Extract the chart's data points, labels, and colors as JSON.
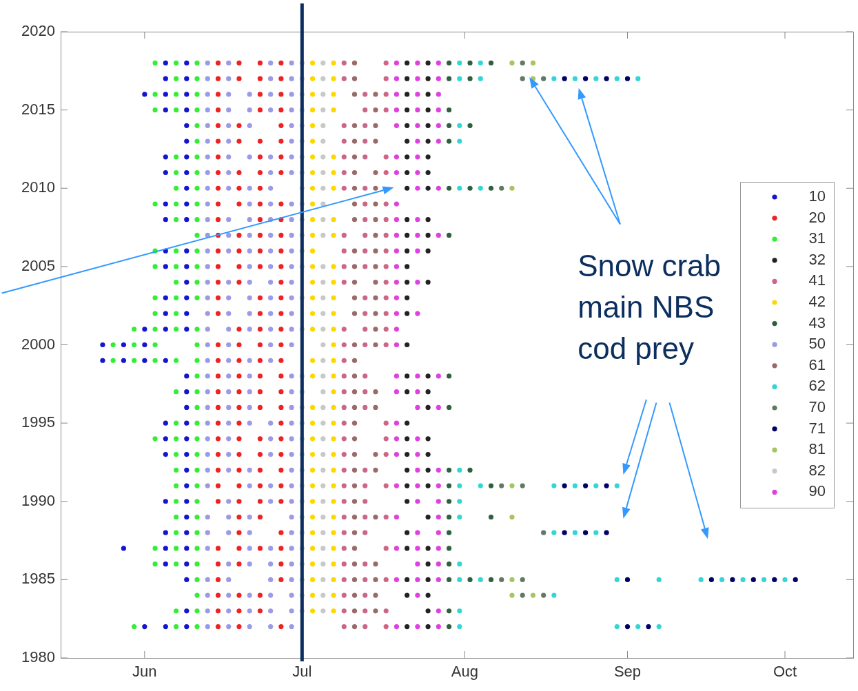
{
  "chart_data": {
    "type": "scatter",
    "marker": "circle",
    "grid": false,
    "legend": "right",
    "xlim": [
      "--05-16",
      "--10-14"
    ],
    "xticks": [
      {
        "value": "--06-01",
        "label": "Jun"
      },
      {
        "value": "--07-01",
        "label": "Jul"
      },
      {
        "value": "--08-01",
        "label": "Aug"
      },
      {
        "value": "--09-01",
        "label": "Sep"
      },
      {
        "value": "--10-01",
        "label": "Oct"
      }
    ],
    "ylim": [
      1980,
      2020
    ],
    "yticks": [
      1980,
      1985,
      1990,
      1995,
      2000,
      2005,
      2010,
      2015,
      2020
    ],
    "ref_lines": [
      {
        "axis": "x",
        "value": "--07-01",
        "color": "#0d2f5f"
      }
    ],
    "annotations": [
      "Snow crab main NBS cod prey"
    ],
    "series": [
      {
        "name": "10",
        "color": "#1515d0",
        "x": [
          "--06-05",
          "--06-09",
          "--06-05",
          "--06-09",
          "--06-01",
          "--06-05",
          "--06-09",
          "--06-05",
          "--06-09",
          "--06-09",
          "--06-09",
          "--06-05",
          "--06-09",
          "--06-05",
          "--06-09",
          "--06-09",
          "--06-05",
          "--06-09",
          "--06-05",
          "--06-09",
          "--06-05",
          "--06-09",
          "--06-05",
          "--06-09",
          "--06-09",
          "--06-05",
          "--06-09",
          "--06-05",
          "--06-09",
          "--06-01",
          "--06-05",
          "--06-09",
          "--05-24",
          "--05-28",
          "--06-01",
          "--05-24",
          "--05-28",
          "--06-01",
          "--06-05",
          "--06-09",
          "--06-09",
          "--06-09",
          "--06-05",
          "--06-09",
          "--06-05",
          "--06-09",
          "--06-05",
          "--06-09",
          "--06-09",
          "--06-09",
          "--06-05",
          "--06-09",
          "--06-09",
          "--06-05",
          "--06-09",
          "--05-28",
          "--06-05",
          "--06-09",
          "--06-05",
          "--06-09",
          "--06-09",
          "--06-09",
          "--06-01",
          "--06-05",
          "--06-09"
        ],
        "values": [
          2018,
          2018,
          2017,
          2017,
          2016,
          2016,
          2016,
          2015,
          2015,
          2014,
          2013,
          2012,
          2012,
          2011,
          2011,
          2010,
          2009,
          2009,
          2008,
          2008,
          2006,
          2006,
          2005,
          2005,
          2004,
          2003,
          2003,
          2002,
          2002,
          2001,
          2001,
          2001,
          2000,
          2000,
          2000,
          1999,
          1999,
          1999,
          1999,
          1998,
          1997,
          1996,
          1995,
          1995,
          1994,
          1994,
          1993,
          1993,
          1992,
          1991,
          1990,
          1990,
          1989,
          1988,
          1988,
          1987,
          1987,
          1987,
          1986,
          1986,
          1985,
          1983,
          1982,
          1982,
          1982
        ]
      },
      {
        "name": "20",
        "color": "#ee2222",
        "x": [
          "--06-15",
          "--06-19",
          "--06-23",
          "--06-27",
          "--06-15",
          "--06-19",
          "--06-23",
          "--06-27",
          "--06-15",
          "--06-23",
          "--06-27",
          "--06-15",
          "--06-23",
          "--06-27",
          "--06-15",
          "--06-19",
          "--06-27",
          "--06-15",
          "--06-19",
          "--06-23",
          "--06-27",
          "--06-15",
          "--06-23",
          "--06-27",
          "--06-15",
          "--06-19",
          "--06-23",
          "--06-27",
          "--06-15",
          "--06-19",
          "--06-23",
          "--06-15",
          "--06-19",
          "--06-23",
          "--06-27",
          "--06-15",
          "--06-23",
          "--06-27",
          "--06-15",
          "--06-19",
          "--06-23",
          "--06-27",
          "--06-15",
          "--06-19",
          "--06-23",
          "--06-27",
          "--06-15",
          "--06-19",
          "--06-23",
          "--06-27",
          "--06-15",
          "--06-19",
          "--06-27",
          "--06-15",
          "--06-23",
          "--06-27",
          "--06-15",
          "--06-23",
          "--06-27",
          "--06-19",
          "--06-23",
          "--06-27",
          "--06-15",
          "--06-19",
          "--06-23",
          "--06-27",
          "--06-15",
          "--06-19",
          "--06-23",
          "--06-27",
          "--06-15",
          "--06-19",
          "--06-23",
          "--06-27",
          "--06-15",
          "--06-19",
          "--06-23",
          "--06-27",
          "--06-15",
          "--06-19",
          "--06-23",
          "--06-27",
          "--06-15",
          "--06-19",
          "--06-27",
          "--06-15",
          "--06-19",
          "--06-23",
          "--06-27",
          "--06-15",
          "--06-19",
          "--06-23",
          "--06-27",
          "--06-15",
          "--06-19",
          "--06-23",
          "--06-27",
          "--06-15",
          "--06-19",
          "--06-23",
          "--06-27",
          "--06-15",
          "--06-19",
          "--06-23",
          "--06-27",
          "--06-19",
          "--06-23",
          "--06-19",
          "--06-27",
          "--06-15",
          "--06-19",
          "--06-23",
          "--06-27",
          "--06-15",
          "--06-19",
          "--06-27",
          "--06-15",
          "--06-27",
          "--06-15",
          "--06-19",
          "--06-23",
          "--06-15",
          "--06-19",
          "--06-23",
          "--06-15",
          "--06-19",
          "--06-27"
        ],
        "values": [
          2018,
          2018,
          2018,
          2018,
          2017,
          2017,
          2017,
          2017,
          2016,
          2016,
          2016,
          2015,
          2015,
          2015,
          2014,
          2014,
          2014,
          2013,
          2013,
          2013,
          2013,
          2012,
          2012,
          2012,
          2011,
          2011,
          2011,
          2011,
          2010,
          2010,
          2010,
          2009,
          2009,
          2009,
          2009,
          2008,
          2008,
          2008,
          2007,
          2007,
          2007,
          2007,
          2006,
          2006,
          2006,
          2006,
          2005,
          2005,
          2005,
          2005,
          2004,
          2004,
          2004,
          2003,
          2003,
          2003,
          2002,
          2002,
          2002,
          2001,
          2001,
          2001,
          2000,
          2000,
          2000,
          2000,
          1999,
          1999,
          1999,
          1999,
          1998,
          1998,
          1998,
          1998,
          1997,
          1997,
          1997,
          1997,
          1996,
          1996,
          1996,
          1996,
          1995,
          1995,
          1995,
          1994,
          1994,
          1994,
          1994,
          1993,
          1993,
          1993,
          1993,
          1992,
          1992,
          1992,
          1992,
          1991,
          1991,
          1991,
          1991,
          1990,
          1990,
          1990,
          1990,
          1989,
          1989,
          1988,
          1988,
          1987,
          1987,
          1987,
          1987,
          1986,
          1986,
          1986,
          1985,
          1985,
          1984,
          1984,
          1984,
          1983,
          1983,
          1983,
          1982,
          1982,
          1982
        ]
      },
      {
        "name": "31",
        "color": "#33ee33",
        "x": [
          "--06-03",
          "--06-07",
          "--06-11",
          "--06-07",
          "--06-11",
          "--06-03",
          "--06-07",
          "--06-11",
          "--06-03",
          "--06-07",
          "--06-11",
          "--06-11",
          "--06-11",
          "--06-07",
          "--06-11",
          "--06-07",
          "--06-11",
          "--06-07",
          "--06-11",
          "--06-03",
          "--06-07",
          "--06-11",
          "--06-07",
          "--06-11",
          "--06-11",
          "--06-03",
          "--06-07",
          "--06-11",
          "--06-03",
          "--06-07",
          "--06-11",
          "--06-07",
          "--06-11",
          "--06-03",
          "--06-07",
          "--06-11",
          "--06-03",
          "--06-07",
          "--05-30",
          "--06-03",
          "--06-07",
          "--06-11",
          "--05-26",
          "--05-30",
          "--06-03",
          "--06-11",
          "--05-26",
          "--05-30",
          "--06-03",
          "--06-07",
          "--06-11",
          "--06-11",
          "--06-07",
          "--06-11",
          "--06-11",
          "--06-07",
          "--06-11",
          "--06-03",
          "--06-07",
          "--06-11",
          "--06-07",
          "--06-11",
          "--06-07",
          "--06-11",
          "--06-07",
          "--06-11",
          "--06-07",
          "--06-11",
          "--06-07",
          "--06-11",
          "--06-07",
          "--06-11",
          "--06-03",
          "--06-07",
          "--06-11",
          "--06-03",
          "--06-07",
          "--06-11",
          "--06-11",
          "--06-11",
          "--06-07",
          "--06-11",
          "--05-30",
          "--06-07",
          "--06-11"
        ],
        "values": [
          2018,
          2018,
          2018,
          2017,
          2017,
          2016,
          2016,
          2016,
          2015,
          2015,
          2015,
          2014,
          2013,
          2012,
          2012,
          2011,
          2011,
          2010,
          2010,
          2009,
          2009,
          2009,
          2008,
          2008,
          2007,
          2006,
          2006,
          2006,
          2005,
          2005,
          2005,
          2004,
          2004,
          2003,
          2003,
          2003,
          2002,
          2002,
          2001,
          2001,
          2001,
          2001,
          2000,
          2000,
          2000,
          2000,
          1999,
          1999,
          1999,
          1999,
          1999,
          1998,
          1997,
          1997,
          1996,
          1995,
          1995,
          1994,
          1994,
          1994,
          1993,
          1993,
          1992,
          1992,
          1991,
          1991,
          1990,
          1990,
          1989,
          1989,
          1988,
          1988,
          1987,
          1987,
          1987,
          1986,
          1986,
          1986,
          1985,
          1984,
          1983,
          1983,
          1982,
          1982,
          1982
        ]
      },
      {
        "name": "32",
        "color": "#222222",
        "x": [
          "--07-21",
          "--07-25",
          "--07-21",
          "--07-25",
          "--07-21",
          "--07-25",
          "--07-21",
          "--07-25",
          "--07-21",
          "--07-25",
          "--07-21",
          "--07-25",
          "--07-21",
          "--07-25",
          "--07-21",
          "--07-25",
          "--07-21",
          "--07-25",
          "--07-21",
          "--07-25",
          "--07-21",
          "--07-25",
          "--07-21",
          "--07-25",
          "--07-21",
          "--07-21",
          "--07-25",
          "--07-21",
          "--07-21",
          "--07-21",
          "--07-21",
          "--07-25",
          "--07-21",
          "--07-25",
          "--07-25",
          "--07-21",
          "--07-21",
          "--07-25",
          "--07-21",
          "--07-25",
          "--07-21",
          "--07-25",
          "--07-21",
          "--07-25",
          "--07-21",
          "--07-25",
          "--07-21",
          "--07-21",
          "--07-25",
          "--07-25",
          "--07-21",
          "--07-25",
          "--07-21",
          "--07-25",
          "--07-25",
          "--07-21",
          "--07-25"
        ],
        "values": [
          2018,
          2018,
          2017,
          2017,
          2016,
          2016,
          2015,
          2015,
          2014,
          2014,
          2013,
          2013,
          2012,
          2012,
          2011,
          2011,
          2010,
          2010,
          2008,
          2008,
          2007,
          2007,
          2006,
          2006,
          2005,
          2004,
          2004,
          2003,
          2002,
          2000,
          1998,
          1998,
          1997,
          1997,
          1996,
          1995,
          1994,
          1994,
          1993,
          1993,
          1992,
          1992,
          1991,
          1991,
          1990,
          1989,
          1988,
          1987,
          1987,
          1986,
          1985,
          1985,
          1984,
          1984,
          1983,
          1982,
          1982
        ]
      },
      {
        "name": "41",
        "color": "#cc6688",
        "x": [
          "--07-09",
          "--07-17",
          "--07-09",
          "--07-17",
          "--07-13",
          "--07-17",
          "--07-13",
          "--07-17",
          "--07-09",
          "--07-13",
          "--07-09",
          "--07-13",
          "--07-09",
          "--07-13",
          "--07-17",
          "--07-09",
          "--07-17",
          "--07-09",
          "--07-13",
          "--07-13",
          "--07-17",
          "--07-13",
          "--07-17",
          "--07-09",
          "--07-13",
          "--07-17",
          "--07-09",
          "--07-13",
          "--07-17",
          "--07-09",
          "--07-13",
          "--07-17",
          "--07-09",
          "--07-17",
          "--07-13",
          "--07-17",
          "--07-13",
          "--07-17",
          "--07-09",
          "--07-13",
          "--07-17",
          "--07-09",
          "--07-13",
          "--07-17",
          "--07-09",
          "--07-09",
          "--07-13",
          "--07-09",
          "--07-13",
          "--07-09",
          "--07-13",
          "--07-09",
          "--07-17",
          "--07-09",
          "--07-17",
          "--07-09",
          "--07-17",
          "--07-09",
          "--07-13",
          "--07-09",
          "--07-13",
          "--07-17",
          "--07-09",
          "--07-13",
          "--07-09",
          "--07-13",
          "--07-17",
          "--07-09",
          "--07-13",
          "--07-09",
          "--07-17",
          "--07-09",
          "--07-13",
          "--07-09",
          "--07-13",
          "--07-17",
          "--07-09",
          "--07-13",
          "--07-09",
          "--07-13",
          "--07-17",
          "--07-09",
          "--07-13",
          "--07-17"
        ],
        "values": [
          2018,
          2018,
          2017,
          2017,
          2016,
          2016,
          2015,
          2015,
          2014,
          2014,
          2013,
          2013,
          2012,
          2012,
          2012,
          2011,
          2011,
          2010,
          2010,
          2009,
          2009,
          2008,
          2008,
          2007,
          2007,
          2007,
          2006,
          2006,
          2006,
          2005,
          2005,
          2005,
          2004,
          2004,
          2003,
          2003,
          2002,
          2002,
          2001,
          2001,
          2001,
          2000,
          2000,
          2000,
          1999,
          1998,
          1998,
          1997,
          1997,
          1996,
          1996,
          1995,
          1995,
          1994,
          1994,
          1993,
          1993,
          1992,
          1992,
          1991,
          1991,
          1991,
          1990,
          1990,
          1989,
          1989,
          1989,
          1988,
          1988,
          1987,
          1987,
          1986,
          1986,
          1985,
          1985,
          1985,
          1984,
          1984,
          1983,
          1983,
          1983,
          1982,
          1982,
          1982
        ]
      },
      {
        "name": "42",
        "color": "#ffd700",
        "x": [
          "--07-03",
          "--07-07",
          "--07-03",
          "--07-07",
          "--07-03",
          "--07-07",
          "--07-03",
          "--07-07",
          "--07-03",
          "--07-03",
          "--07-03",
          "--07-07",
          "--07-03",
          "--07-07",
          "--07-03",
          "--07-07",
          "--07-03",
          "--07-03",
          "--07-07",
          "--07-03",
          "--07-07",
          "--07-03",
          "--07-03",
          "--07-07",
          "--07-03",
          "--07-07",
          "--07-03",
          "--07-07",
          "--07-03",
          "--07-07",
          "--07-03",
          "--07-07",
          "--07-07",
          "--07-03",
          "--07-07",
          "--07-03",
          "--07-07",
          "--07-07",
          "--07-03",
          "--07-07",
          "--07-03",
          "--07-07",
          "--07-03",
          "--07-07",
          "--07-03",
          "--07-07",
          "--07-03",
          "--07-07",
          "--07-03",
          "--07-07",
          "--07-03",
          "--07-07",
          "--07-03",
          "--07-07",
          "--07-03",
          "--07-07",
          "--07-03",
          "--07-07",
          "--07-03",
          "--07-07",
          "--07-03",
          "--07-07",
          "--07-03",
          "--07-07",
          "--07-03",
          "--07-07"
        ],
        "values": [
          2018,
          2018,
          2017,
          2017,
          2016,
          2016,
          2015,
          2015,
          2014,
          2013,
          2012,
          2012,
          2011,
          2011,
          2010,
          2010,
          2009,
          2008,
          2008,
          2007,
          2007,
          2006,
          2005,
          2005,
          2004,
          2004,
          2003,
          2003,
          2002,
          2002,
          2001,
          2001,
          2000,
          1999,
          1999,
          1998,
          1998,
          1997,
          1996,
          1996,
          1995,
          1995,
          1994,
          1994,
          1993,
          1993,
          1992,
          1992,
          1991,
          1991,
          1990,
          1990,
          1989,
          1989,
          1988,
          1988,
          1987,
          1987,
          1986,
          1986,
          1985,
          1985,
          1984,
          1984,
          1983,
          1983
        ]
      },
      {
        "name": "43",
        "color": "#2f5f3f",
        "x": [
          "--07-29",
          "--08-02",
          "--08-06",
          "--07-29",
          "--08-02",
          "--07-29",
          "--07-29",
          "--08-02",
          "--07-29",
          "--07-29",
          "--08-02",
          "--08-06",
          "--07-29",
          "--07-29",
          "--07-29",
          "--07-29",
          "--08-02",
          "--07-29",
          "--08-06",
          "--07-29",
          "--07-29",
          "--08-06",
          "--07-29",
          "--07-29",
          "--07-29",
          "--07-29",
          "--08-02",
          "--08-06",
          "--07-29",
          "--07-29"
        ],
        "values": [
          2018,
          2018,
          2018,
          2017,
          2017,
          2015,
          2014,
          2014,
          2013,
          2010,
          2010,
          2010,
          2007,
          1998,
          1996,
          1992,
          1992,
          1991,
          1991,
          1990,
          1989,
          1989,
          1988,
          1987,
          1986,
          1985,
          1985,
          1985,
          1983,
          1982
        ]
      },
      {
        "name": "50",
        "color": "#9a9ae6",
        "x": [
          "--06-13",
          "--06-17",
          "--06-25",
          "--06-29",
          "--06-13",
          "--06-17",
          "--06-25",
          "--06-29",
          "--06-13",
          "--06-17",
          "--06-21",
          "--06-25",
          "--06-29",
          "--06-13",
          "--06-17",
          "--06-21",
          "--06-25",
          "--06-29",
          "--06-13",
          "--06-17",
          "--06-21",
          "--06-29",
          "--06-13",
          "--06-17",
          "--06-29",
          "--06-13",
          "--06-17",
          "--06-21",
          "--06-25",
          "--06-29",
          "--06-13",
          "--06-17",
          "--06-25",
          "--06-29",
          "--06-13",
          "--06-17",
          "--06-21",
          "--06-25",
          "--06-13",
          "--06-21",
          "--06-25",
          "--06-29",
          "--06-13",
          "--06-17",
          "--06-21",
          "--06-25",
          "--06-29",
          "--06-13",
          "--06-17",
          "--06-21",
          "--06-25",
          "--06-29",
          "--06-13",
          "--06-17",
          "--06-21",
          "--06-25",
          "--06-29",
          "--06-13",
          "--06-21",
          "--06-25",
          "--06-29",
          "--06-13",
          "--06-17",
          "--06-21",
          "--06-25",
          "--06-29",
          "--06-13",
          "--06-17",
          "--06-21",
          "--06-25",
          "--06-29",
          "--06-13",
          "--06-17",
          "--06-21",
          "--06-25",
          "--06-29",
          "--06-13",
          "--06-17",
          "--06-21",
          "--06-25",
          "--06-29",
          "--06-13",
          "--06-17",
          "--06-25",
          "--06-29",
          "--06-13",
          "--06-17",
          "--06-21",
          "--06-25",
          "--06-13",
          "--06-17",
          "--06-21",
          "--06-29",
          "--06-13",
          "--06-17",
          "--06-21",
          "--06-29",
          "--06-13",
          "--06-17",
          "--06-21",
          "--06-29",
          "--06-13",
          "--06-17",
          "--06-21",
          "--06-25",
          "--06-29",
          "--06-13",
          "--06-17",
          "--06-25",
          "--06-29",
          "--06-13",
          "--06-17",
          "--06-25",
          "--06-29",
          "--06-13",
          "--06-17",
          "--06-21",
          "--06-29",
          "--06-13",
          "--06-21",
          "--06-25",
          "--06-29",
          "--06-17",
          "--06-25",
          "--06-29",
          "--06-13",
          "--06-17",
          "--06-21",
          "--06-29",
          "--06-13",
          "--06-17",
          "--06-21",
          "--06-29",
          "--06-13",
          "--06-21",
          "--06-25",
          "--06-29",
          "--06-17",
          "--06-21",
          "--06-25",
          "--06-29",
          "--06-13",
          "--06-17",
          "--06-25",
          "--06-29",
          "--06-13",
          "--06-17",
          "--06-21",
          "--06-25",
          "--06-29",
          "--06-13",
          "--06-17",
          "--06-21",
          "--06-25",
          "--06-29",
          "--06-13",
          "--06-17",
          "--06-21",
          "--06-25",
          "--06-29"
        ],
        "values": [
          2018,
          2018,
          2018,
          2018,
          2017,
          2017,
          2017,
          2017,
          2016,
          2016,
          2016,
          2016,
          2016,
          2015,
          2015,
          2015,
          2015,
          2015,
          2014,
          2014,
          2014,
          2014,
          2013,
          2013,
          2013,
          2012,
          2012,
          2012,
          2012,
          2012,
          2011,
          2011,
          2011,
          2011,
          2010,
          2010,
          2010,
          2010,
          2009,
          2009,
          2009,
          2009,
          2008,
          2008,
          2008,
          2008,
          2008,
          2007,
          2007,
          2007,
          2007,
          2007,
          2006,
          2006,
          2006,
          2006,
          2006,
          2005,
          2005,
          2005,
          2005,
          2004,
          2004,
          2004,
          2004,
          2004,
          2003,
          2003,
          2003,
          2003,
          2003,
          2002,
          2002,
          2002,
          2002,
          2002,
          2001,
          2001,
          2001,
          2001,
          2001,
          2000,
          2000,
          2000,
          2000,
          1999,
          1999,
          1999,
          1999,
          1998,
          1998,
          1998,
          1998,
          1997,
          1997,
          1997,
          1997,
          1996,
          1996,
          1996,
          1996,
          1995,
          1995,
          1995,
          1995,
          1995,
          1994,
          1994,
          1994,
          1994,
          1993,
          1993,
          1993,
          1993,
          1992,
          1992,
          1992,
          1992,
          1991,
          1991,
          1991,
          1991,
          1990,
          1990,
          1990,
          1989,
          1989,
          1989,
          1989,
          1988,
          1988,
          1988,
          1988,
          1987,
          1987,
          1987,
          1987,
          1986,
          1986,
          1986,
          1986,
          1985,
          1985,
          1985,
          1985,
          1984,
          1984,
          1984,
          1984,
          1984,
          1983,
          1983,
          1983,
          1983,
          1983,
          1982,
          1982,
          1982,
          1982,
          1982
        ]
      },
      {
        "name": "61",
        "color": "#9a6a6a",
        "x": [
          "--07-11",
          "--07-11",
          "--07-11",
          "--07-15",
          "--07-15",
          "--07-11",
          "--07-15",
          "--07-11",
          "--07-15",
          "--07-11",
          "--07-11",
          "--07-15",
          "--07-11",
          "--07-15",
          "--07-11",
          "--07-15",
          "--07-11",
          "--07-15",
          "--07-15",
          "--07-11",
          "--07-15",
          "--07-11",
          "--07-15",
          "--07-11",
          "--07-15",
          "--07-11",
          "--07-15",
          "--07-11",
          "--07-15",
          "--07-15",
          "--07-11",
          "--07-15",
          "--07-11",
          "--07-11",
          "--07-11",
          "--07-15",
          "--07-11",
          "--07-15",
          "--07-11",
          "--07-11",
          "--07-11",
          "--07-15",
          "--07-11",
          "--07-15",
          "--07-11",
          "--07-11",
          "--07-11",
          "--07-15",
          "--07-11",
          "--07-11",
          "--07-11",
          "--07-15",
          "--07-11",
          "--07-15",
          "--07-11",
          "--07-15",
          "--07-11",
          "--07-15",
          "--07-11"
        ],
        "values": [
          2018,
          2017,
          2016,
          2016,
          2015,
          2014,
          2014,
          2013,
          2013,
          2012,
          2011,
          2011,
          2010,
          2010,
          2009,
          2009,
          2008,
          2008,
          2007,
          2006,
          2006,
          2005,
          2005,
          2004,
          2004,
          2003,
          2003,
          2002,
          2002,
          2001,
          2000,
          2000,
          1999,
          1998,
          1997,
          1997,
          1996,
          1996,
          1995,
          1994,
          1993,
          1993,
          1992,
          1992,
          1991,
          1990,
          1989,
          1989,
          1988,
          1987,
          1986,
          1986,
          1985,
          1985,
          1984,
          1984,
          1983,
          1983,
          1982
        ]
      },
      {
        "name": "62",
        "color": "#33d6d6",
        "x": [
          "--07-31",
          "--08-04",
          "--07-31",
          "--08-04",
          "--08-18",
          "--08-22",
          "--08-26",
          "--08-30",
          "--09-03",
          "--07-31",
          "--07-31",
          "--07-31",
          "--08-04",
          "--07-31",
          "--07-31",
          "--08-04",
          "--08-18",
          "--08-22",
          "--08-26",
          "--08-30",
          "--07-31",
          "--07-31",
          "--08-18",
          "--08-22",
          "--08-26",
          "--07-31",
          "--07-31",
          "--08-04",
          "--08-30",
          "--09-07",
          "--09-15",
          "--09-19",
          "--09-23",
          "--09-27",
          "--10-01",
          "--08-18",
          "--07-31",
          "--07-31",
          "--08-30",
          "--09-03",
          "--09-07"
        ],
        "values": [
          2018,
          2018,
          2017,
          2017,
          2017,
          2017,
          2017,
          2017,
          2017,
          2014,
          2013,
          2010,
          2010,
          1992,
          1991,
          1991,
          1991,
          1991,
          1991,
          1991,
          1990,
          1989,
          1988,
          1988,
          1988,
          1986,
          1985,
          1985,
          1985,
          1985,
          1985,
          1985,
          1985,
          1985,
          1985,
          1984,
          1983,
          1982,
          1982,
          1982,
          1982
        ]
      },
      {
        "name": "70",
        "color": "#607a66",
        "x": [
          "--08-12",
          "--08-12",
          "--08-16",
          "--08-08",
          "--08-08",
          "--08-12",
          "--08-16",
          "--08-08",
          "--08-12",
          "--08-12",
          "--08-16"
        ],
        "values": [
          2018,
          2017,
          2017,
          2010,
          1991,
          1991,
          1988,
          1985,
          1985,
          1984,
          1984
        ]
      },
      {
        "name": "71",
        "color": "#000066",
        "x": [
          "--08-20",
          "--08-24",
          "--08-28",
          "--09-01",
          "--08-20",
          "--08-24",
          "--08-28",
          "--08-20",
          "--08-24",
          "--08-28",
          "--09-01",
          "--09-17",
          "--09-21",
          "--09-25",
          "--09-29",
          "--10-03",
          "--09-01",
          "--09-05"
        ],
        "values": [
          2017,
          2017,
          2017,
          2017,
          1991,
          1991,
          1991,
          1988,
          1988,
          1988,
          1985,
          1985,
          1985,
          1985,
          1985,
          1985,
          1982,
          1982
        ]
      },
      {
        "name": "81",
        "color": "#a8c45c",
        "x": [
          "--08-10",
          "--08-14",
          "--08-14",
          "--08-10",
          "--08-10",
          "--08-10",
          "--08-10",
          "--08-10",
          "--08-14"
        ],
        "values": [
          2018,
          2018,
          2017,
          2010,
          1991,
          1989,
          1985,
          1984,
          1984
        ]
      },
      {
        "name": "82",
        "color": "#c8c8c8",
        "x": [
          "--07-01",
          "--07-05",
          "--07-01",
          "--07-05",
          "--07-01",
          "--07-05",
          "--07-01",
          "--07-05",
          "--07-01",
          "--07-05",
          "--07-01",
          "--07-05",
          "--07-01",
          "--07-05",
          "--07-01",
          "--07-05",
          "--07-01",
          "--07-05",
          "--07-01",
          "--07-05",
          "--07-01",
          "--07-05",
          "--07-01",
          "--07-05",
          "--07-01",
          "--07-01",
          "--07-05",
          "--07-05",
          "--07-01",
          "--07-05",
          "--07-05",
          "--07-01",
          "--07-05",
          "--07-05",
          "--07-05",
          "--07-01",
          "--07-05",
          "--07-01",
          "--07-05",
          "--07-01",
          "--07-05",
          "--07-01",
          "--07-05",
          "--07-01",
          "--07-05",
          "--07-01",
          "--07-05",
          "--07-01",
          "--07-05",
          "--07-01",
          "--07-05",
          "--07-01",
          "--07-05",
          "--07-01",
          "--07-05",
          "--07-01",
          "--07-05",
          "--07-01",
          "--07-05",
          "--07-01",
          "--07-05",
          "--07-01",
          "--07-05",
          "--07-01",
          "--07-05",
          "--07-01",
          "--07-05"
        ],
        "values": [
          2018,
          2018,
          2017,
          2017,
          2016,
          2016,
          2015,
          2015,
          2014,
          2014,
          2013,
          2013,
          2012,
          2012,
          2011,
          2011,
          2010,
          2010,
          2009,
          2009,
          2008,
          2008,
          2007,
          2007,
          2006,
          2005,
          2005,
          2004,
          2003,
          2003,
          2002,
          2001,
          2001,
          2000,
          1999,
          1998,
          1998,
          1997,
          1997,
          1996,
          1996,
          1995,
          1995,
          1994,
          1994,
          1993,
          1993,
          1992,
          1992,
          1991,
          1991,
          1990,
          1990,
          1989,
          1989,
          1988,
          1988,
          1987,
          1987,
          1986,
          1986,
          1985,
          1985,
          1984,
          1984,
          1983,
          1983
        ]
      },
      {
        "name": "90",
        "color": "#e040e0",
        "x": [
          "--07-19",
          "--07-23",
          "--07-27",
          "--07-19",
          "--07-23",
          "--07-27",
          "--07-19",
          "--07-23",
          "--07-27",
          "--07-19",
          "--07-23",
          "--07-27",
          "--07-19",
          "--07-23",
          "--07-27",
          "--07-23",
          "--07-27",
          "--07-19",
          "--07-23",
          "--07-19",
          "--07-23",
          "--07-23",
          "--07-27",
          "--07-19",
          "--07-19",
          "--07-23",
          "--07-19",
          "--07-23",
          "--07-27",
          "--07-19",
          "--07-23",
          "--07-19",
          "--07-19",
          "--07-23",
          "--07-19",
          "--07-19",
          "--07-23",
          "--07-19",
          "--07-19",
          "--07-19",
          "--07-23",
          "--07-27",
          "--07-19",
          "--07-23",
          "--07-23",
          "--07-27",
          "--07-19",
          "--07-19",
          "--07-23",
          "--07-19",
          "--07-23",
          "--07-23",
          "--07-27",
          "--07-19",
          "--07-23",
          "--07-27",
          "--07-23",
          "--07-27",
          "--07-19",
          "--07-27",
          "--07-23",
          "--07-27",
          "--07-19",
          "--07-23",
          "--07-27",
          "--07-23",
          "--07-27",
          "--07-19",
          "--07-23",
          "--07-27",
          "--07-23",
          "--07-27",
          "--07-19",
          "--07-23",
          "--07-27"
        ],
        "values": [
          2018,
          2018,
          2018,
          2017,
          2017,
          2017,
          2016,
          2016,
          2016,
          2015,
          2015,
          2015,
          2014,
          2014,
          2014,
          2013,
          2013,
          2012,
          2012,
          2011,
          2011,
          2010,
          2010,
          2009,
          2008,
          2008,
          2007,
          2007,
          2007,
          2006,
          2006,
          2005,
          2004,
          2004,
          2003,
          2002,
          2002,
          2001,
          2000,
          1998,
          1998,
          1998,
          1997,
          1997,
          1996,
          1996,
          1995,
          1994,
          1994,
          1993,
          1993,
          1992,
          1992,
          1991,
          1991,
          1991,
          1990,
          1990,
          1989,
          1989,
          1988,
          1988,
          1987,
          1987,
          1987,
          1986,
          1986,
          1985,
          1985,
          1985,
          1984,
          1983,
          1982,
          1982,
          1982
        ]
      }
    ]
  }
}
